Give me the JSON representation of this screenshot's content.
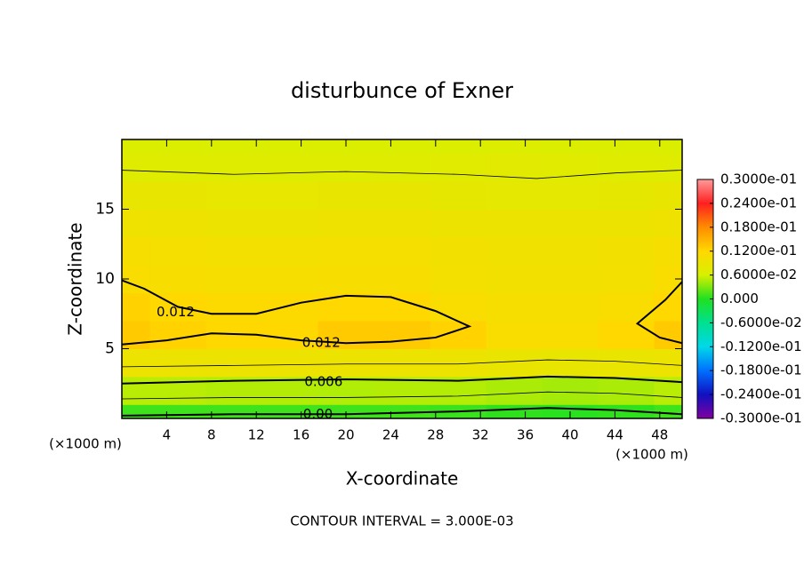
{
  "chart_data": {
    "type": "contour",
    "title": "disturbunce of Exner",
    "xlabel": "X-coordinate",
    "ylabel": "Z-coordinate",
    "x_unit": "(×1000 m)",
    "z_unit": "(×1000 m)",
    "footer": "CONTOUR INTERVAL = 3.000E-03",
    "xlim": [
      0,
      50
    ],
    "ylim": [
      0,
      20
    ],
    "xticks": [
      4,
      8,
      12,
      16,
      20,
      24,
      28,
      32,
      36,
      40,
      44,
      48
    ],
    "yticks": [
      5,
      10,
      15
    ],
    "x": [
      0,
      5,
      10,
      15,
      20,
      25,
      30,
      35,
      40,
      45,
      50
    ],
    "z": [
      0,
      2,
      4,
      6,
      8,
      10,
      12,
      14,
      16,
      18,
      20
    ],
    "field": [
      [
        0.001,
        0.001,
        0.001,
        0.001,
        0.001,
        0.001,
        0.0008,
        0.0005,
        0.0003,
        0.0005,
        0.001
      ],
      [
        0.005,
        0.005,
        0.0048,
        0.0048,
        0.0047,
        0.0048,
        0.0048,
        0.0045,
        0.0043,
        0.0045,
        0.005
      ],
      [
        0.009,
        0.0092,
        0.0092,
        0.0092,
        0.0093,
        0.0092,
        0.0092,
        0.0088,
        0.0085,
        0.0088,
        0.009
      ],
      [
        0.013,
        0.0125,
        0.012,
        0.012,
        0.013,
        0.013,
        0.0125,
        0.011,
        0.011,
        0.012,
        0.013
      ],
      [
        0.0125,
        0.012,
        0.0115,
        0.0115,
        0.012,
        0.012,
        0.011,
        0.0105,
        0.0105,
        0.011,
        0.012
      ],
      [
        0.011,
        0.0108,
        0.0105,
        0.0105,
        0.0108,
        0.0108,
        0.0102,
        0.01,
        0.01,
        0.0102,
        0.011
      ],
      [
        0.0105,
        0.0103,
        0.0102,
        0.0102,
        0.0103,
        0.0103,
        0.01,
        0.0098,
        0.0098,
        0.01,
        0.0105
      ],
      [
        0.0095,
        0.0094,
        0.0093,
        0.0093,
        0.0094,
        0.0094,
        0.0092,
        0.009,
        0.009,
        0.0092,
        0.0095
      ],
      [
        0.0085,
        0.0084,
        0.0083,
        0.0083,
        0.0084,
        0.0084,
        0.0082,
        0.008,
        0.008,
        0.0082,
        0.0085
      ],
      [
        0.007,
        0.007,
        0.0071,
        0.0071,
        0.0071,
        0.0071,
        0.0072,
        0.0074,
        0.0072,
        0.007,
        0.007
      ],
      [
        0.0065,
        0.0065,
        0.0065,
        0.0065,
        0.0065,
        0.0065,
        0.0066,
        0.0068,
        0.0066,
        0.0065,
        0.0065
      ]
    ],
    "contours": [
      {
        "level": 0.0,
        "x": [
          0,
          10,
          20,
          30,
          38,
          44,
          50
        ],
        "z": [
          0.2,
          0.3,
          0.3,
          0.5,
          0.75,
          0.6,
          0.3
        ]
      },
      {
        "level": 0.003,
        "x": [
          0,
          10,
          20,
          30,
          38,
          44,
          50
        ],
        "z": [
          1.4,
          1.5,
          1.5,
          1.6,
          1.9,
          1.8,
          1.5
        ]
      },
      {
        "level": 0.006,
        "x": [
          0,
          10,
          20,
          30,
          38,
          44,
          50
        ],
        "z": [
          2.5,
          2.7,
          2.8,
          2.7,
          3.0,
          2.9,
          2.6
        ]
      },
      {
        "level": 0.009,
        "x": [
          0,
          10,
          20,
          30,
          38,
          44,
          50
        ],
        "z": [
          3.7,
          3.8,
          3.9,
          3.9,
          4.2,
          4.1,
          3.8
        ]
      },
      {
        "level": 0.012,
        "x": [
          0,
          2,
          5,
          8,
          12,
          16,
          20,
          24,
          28,
          31,
          28,
          24,
          20,
          16,
          12,
          8,
          4,
          0
        ],
        "z": [
          9.9,
          9.3,
          8.0,
          7.5,
          7.5,
          8.3,
          8.8,
          8.7,
          7.7,
          6.6,
          5.8,
          5.5,
          5.4,
          5.6,
          6.0,
          6.1,
          5.6,
          5.3
        ]
      },
      {
        "level": 0.012,
        "x": [
          50,
          48.5,
          46,
          48,
          50
        ],
        "z": [
          9.8,
          8.5,
          6.8,
          5.8,
          5.4
        ]
      },
      {
        "level": 0.0075,
        "x": [
          0,
          10,
          20,
          30,
          37,
          44,
          50
        ],
        "z": [
          17.8,
          17.5,
          17.7,
          17.5,
          17.2,
          17.6,
          17.8
        ]
      }
    ],
    "contour_labels": [
      {
        "text": "0.012",
        "x": 4.8,
        "z": 7.6
      },
      {
        "text": "0.012",
        "x": 17.8,
        "z": 5.4
      },
      {
        "text": "0.006",
        "x": 18,
        "z": 2.6
      },
      {
        "text": "0.00",
        "x": 17.5,
        "z": 0.3
      }
    ],
    "colorbar": {
      "ticks": [
        {
          "value": 0.03,
          "label": "0.3000e-01"
        },
        {
          "value": 0.024,
          "label": "0.2400e-01"
        },
        {
          "value": 0.018,
          "label": "0.1800e-01"
        },
        {
          "value": 0.012,
          "label": "0.1200e-01"
        },
        {
          "value": 0.006,
          "label": "0.6000e-02"
        },
        {
          "value": 0,
          "label": "0.000"
        },
        {
          "value": -0.006,
          "label": "-0.6000e-02"
        },
        {
          "value": -0.012,
          "label": "-0.1200e-01"
        },
        {
          "value": -0.018,
          "label": "-0.1800e-01"
        },
        {
          "value": -0.024,
          "label": "-0.2400e-01"
        },
        {
          "value": -0.03,
          "label": "-0.3000e-01"
        }
      ],
      "colors": [
        "#ff9a9a",
        "#ff2020",
        "#ff8c00",
        "#ffd800",
        "#d8f000",
        "#20e020",
        "#00e090",
        "#00d8e8",
        "#0070ff",
        "#1010c0",
        "#8000a0"
      ]
    }
  }
}
